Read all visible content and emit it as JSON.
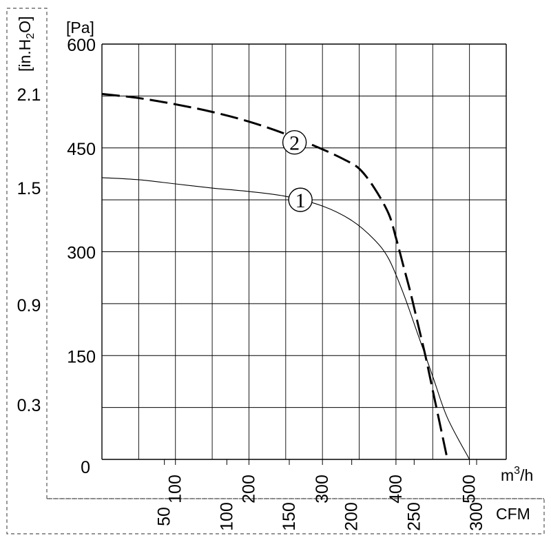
{
  "chart_data": {
    "type": "line",
    "title": "",
    "axes": {
      "y_pa": {
        "unit": "[Pa]",
        "min": 0,
        "max": 600,
        "ticks": [
          0,
          150,
          300,
          450,
          600
        ]
      },
      "y_inh2o": {
        "unit_prefix": "[in.H",
        "unit_sub": "2",
        "unit_suffix": "O]",
        "ticks": [
          "2.1",
          "1.5",
          "0.9",
          "0.3"
        ]
      },
      "x_m3h": {
        "unit": "m",
        "unit_sup": "3",
        "unit_suffix": "/h",
        "min": 0,
        "max": 550,
        "ticks": [
          100,
          200,
          300,
          400,
          500
        ]
      },
      "x_cfm": {
        "unit": "CFM",
        "ticks": [
          50,
          100,
          150,
          200,
          250,
          300
        ]
      }
    },
    "grid": true,
    "series": [
      {
        "name": "1",
        "style": "solid",
        "x": [
          0,
          50,
          100,
          150,
          200,
          250,
          300,
          340,
          370,
          390,
          410,
          430,
          450,
          470,
          500
        ],
        "y": [
          407,
          404,
          398,
          392,
          387,
          380,
          366,
          345,
          318,
          290,
          240,
          180,
          120,
          60,
          0
        ]
      },
      {
        "name": "2",
        "style": "dashed",
        "x": [
          0,
          50,
          100,
          150,
          200,
          250,
          300,
          330,
          350,
          370,
          390,
          400,
          410,
          420,
          430,
          440,
          450,
          470
        ],
        "y": [
          528,
          522,
          513,
          502,
          488,
          470,
          448,
          433,
          420,
          393,
          355,
          320,
          280,
          240,
          195,
          150,
          100,
          0
        ]
      }
    ]
  }
}
